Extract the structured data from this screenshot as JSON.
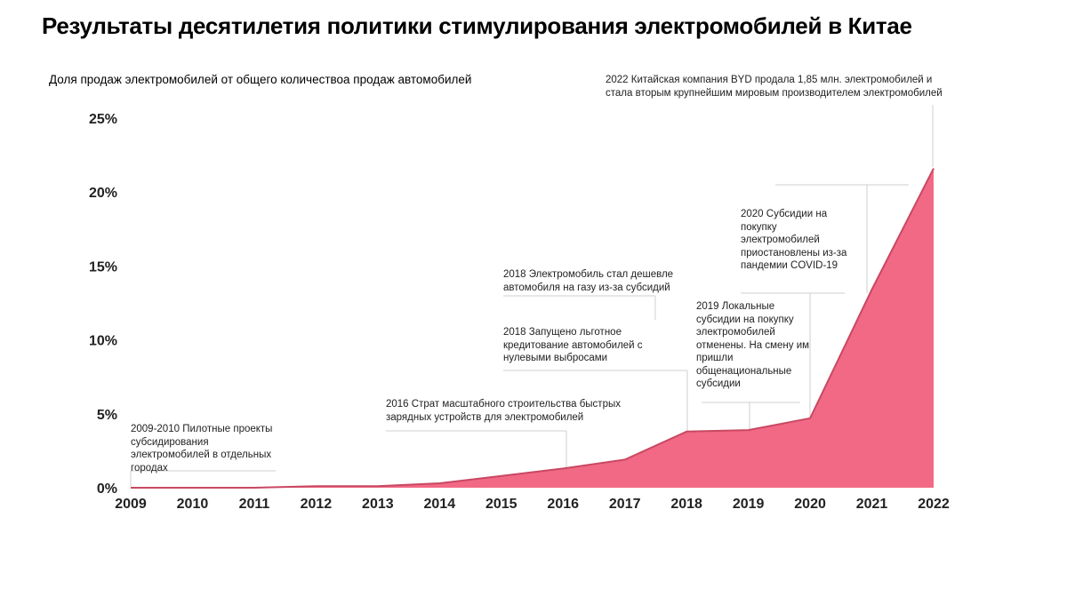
{
  "chart_data": {
    "type": "area",
    "title": "Результаты десятилетия политики стимулирования электромобилей в Китае",
    "subtitle": "Доля продаж электромобилей от общего количествоа продаж автомобилей",
    "x": [
      2009,
      2010,
      2011,
      2012,
      2013,
      2014,
      2015,
      2016,
      2017,
      2018,
      2019,
      2020,
      2021,
      2022
    ],
    "series": [
      {
        "values": [
          0,
          0,
          0,
          0.1,
          0.1,
          0.3,
          0.8,
          1.3,
          1.9,
          3.8,
          3.9,
          4.7,
          13.4,
          21.6
        ]
      }
    ],
    "ylim": [
      0,
      25
    ],
    "yticks": [
      "0%",
      "5%",
      "10%",
      "15%",
      "20%",
      "25%"
    ],
    "xticks": [
      "2009",
      "2010",
      "2011",
      "2012",
      "2013",
      "2014",
      "2015",
      "2016",
      "2017",
      "2018",
      "2019",
      "2020",
      "2021",
      "2022"
    ],
    "grid": false,
    "color": "#f26985",
    "annotations": [
      {
        "year": 2009,
        "text": "2009-2010 Пилотные проекты субсидирования электромобилей в отдельных городах"
      },
      {
        "year": 2016,
        "text": "2016 Страт масштабного строительства быстрых зарядных устройств для электромобилей"
      },
      {
        "year": 2018,
        "text": "2018 Запущено льготное кредитование автомобилей с нулевыми выбросами"
      },
      {
        "year": 2018,
        "text": "2018 Электромобиль стал дешевле автомобиля на газу из-за субсидий"
      },
      {
        "year": 2019,
        "text": "2019 Локальные субсидии на покупку электромобилей отменены. На смену им пришли общенациональные субсидии"
      },
      {
        "year": 2020,
        "text": "2020 Субсидии на покупку электромобилей приостановлены из-за пандемии COVID-19"
      },
      {
        "year": 2022,
        "text": "2022 Китайская компания BYD продала 1,85 млн. электромобилей и стала вторым крупнейшим мировым производителем электромобилей"
      }
    ]
  }
}
